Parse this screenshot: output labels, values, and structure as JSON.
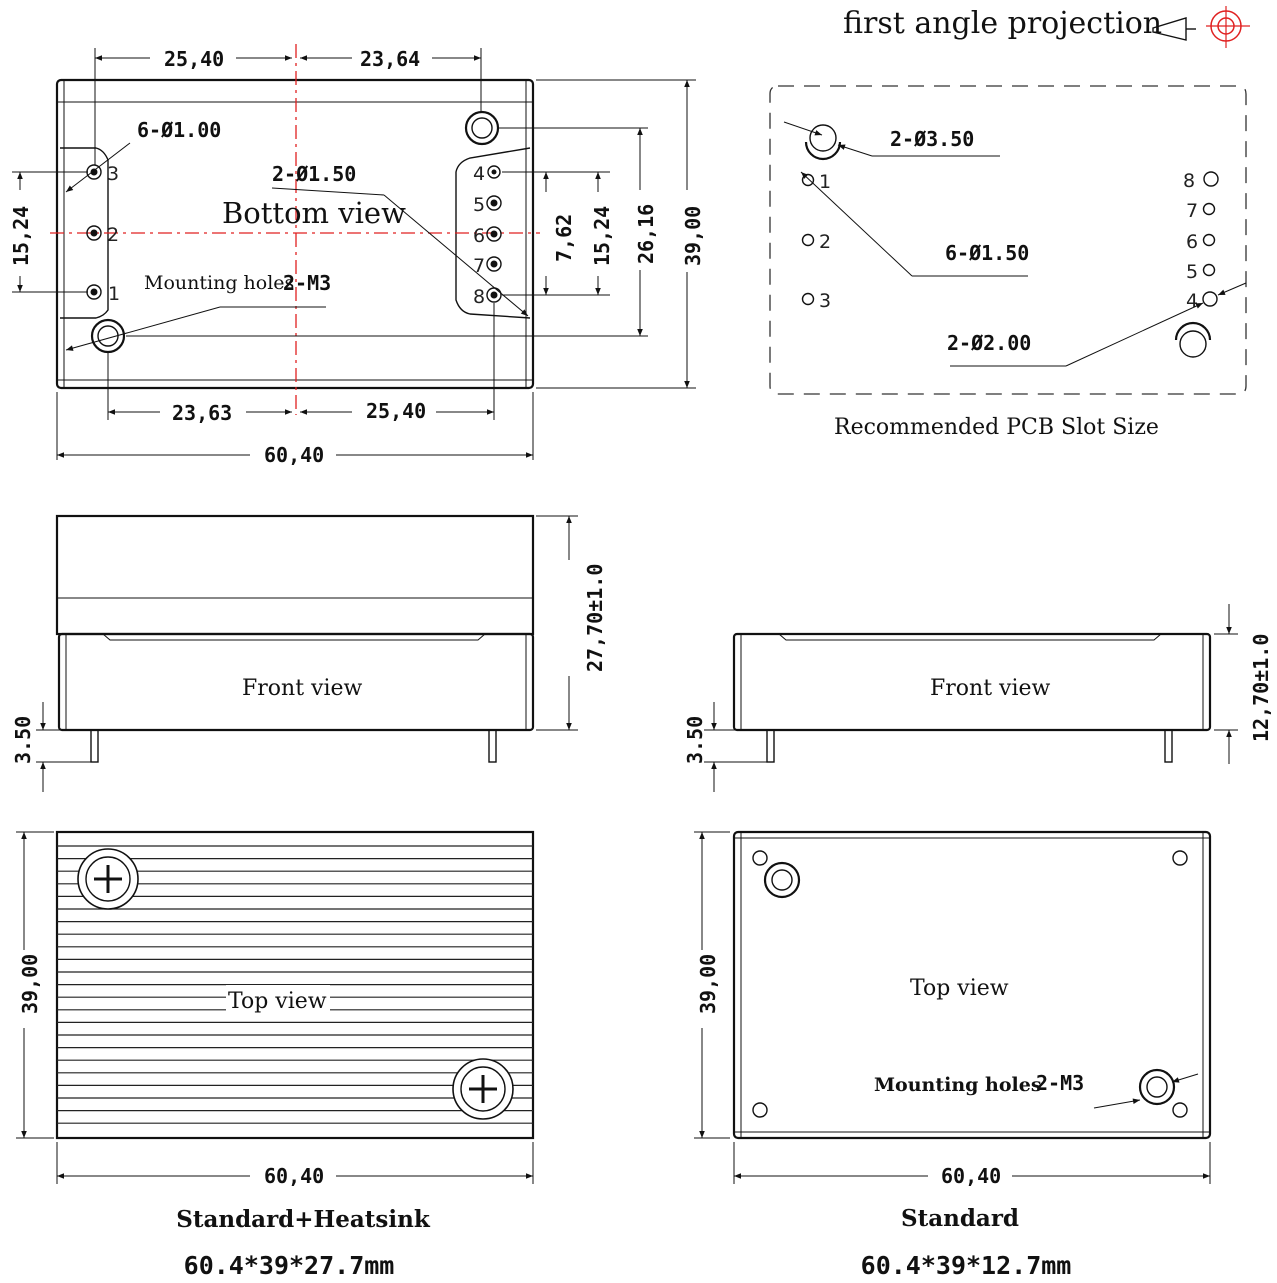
{
  "header": {
    "projection_label": "first angle projection"
  },
  "bottom_view": {
    "title": "Bottom view",
    "dim_top_left": "25,40",
    "dim_top_right": "23,64",
    "dim_bottom_left": "23,63",
    "dim_bottom_right": "25,40",
    "dim_width": "60,40",
    "dim_height": "39,00",
    "dim_left_pins": "15,24",
    "dim_right_pins_inner": "7,62",
    "dim_right_pins_outer": "15,24",
    "dim_mount_span": "26,16",
    "callout_pin_holes": "6-Ø1.00",
    "callout_small_holes": "2-Ø1.50",
    "mounting_label": "Mounting holes",
    "mounting_spec": "2-M3",
    "pins_left": [
      "3",
      "2",
      "1"
    ],
    "pins_right": [
      "4",
      "5",
      "6",
      "7",
      "8"
    ]
  },
  "pcb_slot": {
    "caption": "Recommended PCB Slot Size",
    "callout_large": "2-Ø3.50",
    "callout_pins": "6-Ø1.50",
    "callout_medium": "2-Ø2.00",
    "pins_left": [
      "1",
      "2",
      "3"
    ],
    "pins_right": [
      "8",
      "7",
      "6",
      "5",
      "4"
    ]
  },
  "front_heatsink": {
    "label": "Front view",
    "dim_height": "27,70±1.0",
    "dim_pin": "3.50"
  },
  "front_standard": {
    "label": "Front view",
    "dim_height": "12,70±1.0",
    "dim_pin": "3.50"
  },
  "top_heatsink": {
    "label": "Top view",
    "dim_height": "39,00",
    "dim_width": "60,40",
    "name": "Standard+Heatsink",
    "size": "60.4*39*27.7mm"
  },
  "top_standard": {
    "label": "Top view",
    "dim_height": "39,00",
    "dim_width": "60,40",
    "mounting_label": "Mounting holes",
    "mounting_spec": "2-M3",
    "name": "Standard",
    "size": "60.4*39*12.7mm"
  }
}
